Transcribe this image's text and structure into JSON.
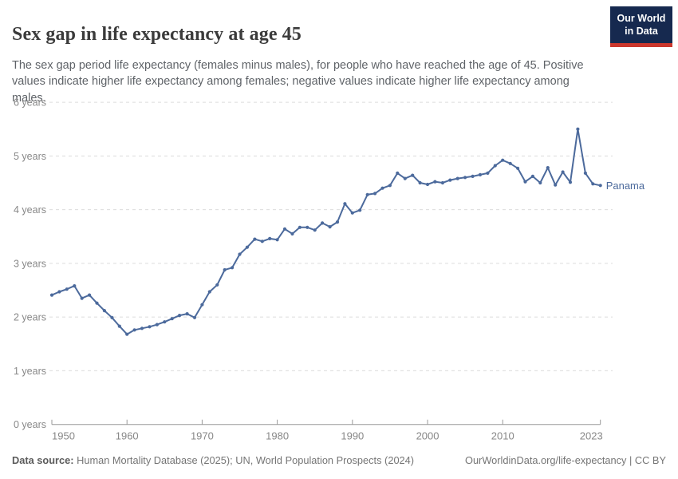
{
  "header": {
    "title": "Sex gap in life expectancy at age 45",
    "logo": {
      "line1": "Our World",
      "line2": "in Data"
    }
  },
  "subtitle": "The sex gap period life expectancy (females minus males), for people who have reached the age of 45. Positive values indicate higher life expectancy among females; negative values indicate higher life expectancy among males.",
  "footer": {
    "source_label": "Data source:",
    "source_text": " Human Mortality Database (2025); UN, World Population Prospects (2024)",
    "link_text": "OurWorldinData.org/life-expectancy | CC BY"
  },
  "colors": {
    "line": "#4c6a9c",
    "entity_label": "#4c6a9c",
    "gridline": "#dcdcdc",
    "axis_line": "#9a9a9a",
    "axis_label": "#888888",
    "logo_bg": "#16294f",
    "logo_stripe": "#cb372d"
  },
  "chart_data": {
    "type": "line",
    "title": "Sex gap in life expectancy at age 45",
    "unit": "years",
    "grid": "horizontal-dashed",
    "legend_position": "end-of-line-label",
    "ylim": [
      0,
      6
    ],
    "ytick_labels": [
      "0 years",
      "1 years",
      "2 years",
      "3 years",
      "4 years",
      "5 years",
      "6 years"
    ],
    "xticks": [
      1950,
      1960,
      1970,
      1980,
      1990,
      2000,
      2010,
      2023
    ],
    "x": [
      1950,
      1951,
      1952,
      1953,
      1954,
      1955,
      1956,
      1957,
      1958,
      1959,
      1960,
      1961,
      1962,
      1963,
      1964,
      1965,
      1966,
      1967,
      1968,
      1969,
      1970,
      1971,
      1972,
      1973,
      1974,
      1975,
      1976,
      1977,
      1978,
      1979,
      1980,
      1981,
      1982,
      1983,
      1984,
      1985,
      1986,
      1987,
      1988,
      1989,
      1990,
      1991,
      1992,
      1993,
      1994,
      1995,
      1996,
      1997,
      1998,
      1999,
      2000,
      2001,
      2002,
      2003,
      2004,
      2005,
      2006,
      2007,
      2008,
      2009,
      2010,
      2011,
      2012,
      2013,
      2014,
      2015,
      2016,
      2017,
      2018,
      2019,
      2020,
      2021,
      2022,
      2023
    ],
    "series": [
      {
        "name": "Panama",
        "values": [
          2.41,
          2.47,
          2.52,
          2.58,
          2.35,
          2.41,
          2.26,
          2.12,
          1.99,
          1.83,
          1.68,
          1.76,
          1.79,
          1.82,
          1.86,
          1.91,
          1.97,
          2.03,
          2.06,
          1.99,
          2.23,
          2.47,
          2.6,
          2.88,
          2.92,
          3.17,
          3.3,
          3.45,
          3.41,
          3.46,
          3.44,
          3.64,
          3.55,
          3.67,
          3.67,
          3.62,
          3.75,
          3.68,
          3.77,
          4.11,
          3.94,
          3.99,
          4.28,
          4.3,
          4.4,
          4.45,
          4.68,
          4.58,
          4.64,
          4.5,
          4.47,
          4.52,
          4.5,
          4.55,
          4.58,
          4.6,
          4.62,
          4.65,
          4.68,
          4.82,
          4.92,
          4.86,
          4.77,
          4.52,
          4.62,
          4.5,
          4.78,
          4.46,
          4.7,
          4.51,
          5.5,
          4.68,
          4.48,
          4.45
        ]
      }
    ]
  }
}
